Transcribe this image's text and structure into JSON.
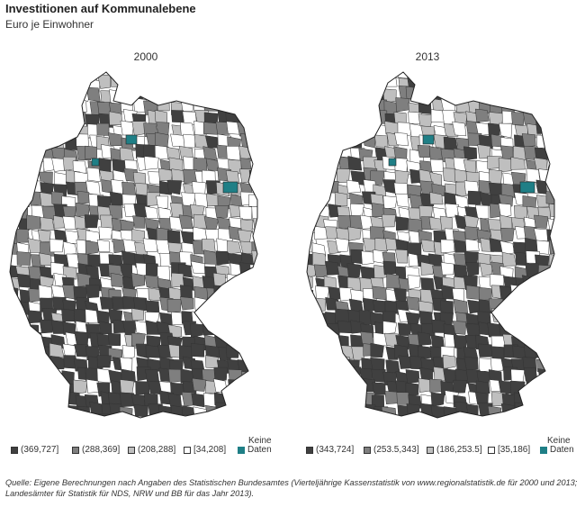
{
  "header": {
    "title": "Investitionen auf Kommunalebene",
    "subtitle": "Euro je Einwohner"
  },
  "colors": {
    "class1": "#404040",
    "class2": "#7f7f7f",
    "class3": "#bfbfbf",
    "class4": "#ffffff",
    "nodata": "#1f7f86",
    "border": "#333333"
  },
  "maps": [
    {
      "year": "2000",
      "legend": [
        {
          "label": "(369,727]",
          "color": "#404040"
        },
        {
          "label": "(288,369]",
          "color": "#7f7f7f"
        },
        {
          "label": "(208,288]",
          "color": "#bfbfbf"
        },
        {
          "label": "[34,208]",
          "color": "#ffffff"
        }
      ],
      "nodata_top": "Keine",
      "nodata_bottom": "Daten",
      "nodata_color": "#1f7f86"
    },
    {
      "year": "2013",
      "legend": [
        {
          "label": "(343,724]",
          "color": "#404040"
        },
        {
          "label": "(253.5,343]",
          "color": "#7f7f7f"
        },
        {
          "label": "(186,253.5]",
          "color": "#bfbfbf"
        },
        {
          "label": "[35,186]",
          "color": "#ffffff"
        }
      ],
      "nodata_top": "Keine",
      "nodata_bottom": "Daten",
      "nodata_color": "#1f7f86"
    }
  ],
  "source": "Quelle: Eigene Berechnungen nach Angaben des Statistischen Bundesamtes (Vierteljährige Kassenstatistik von www.regionalstatistik.de für 2000 und 2013; Landesämter für Statistik für NDS, NRW und BB für das Jahr 2013)."
}
